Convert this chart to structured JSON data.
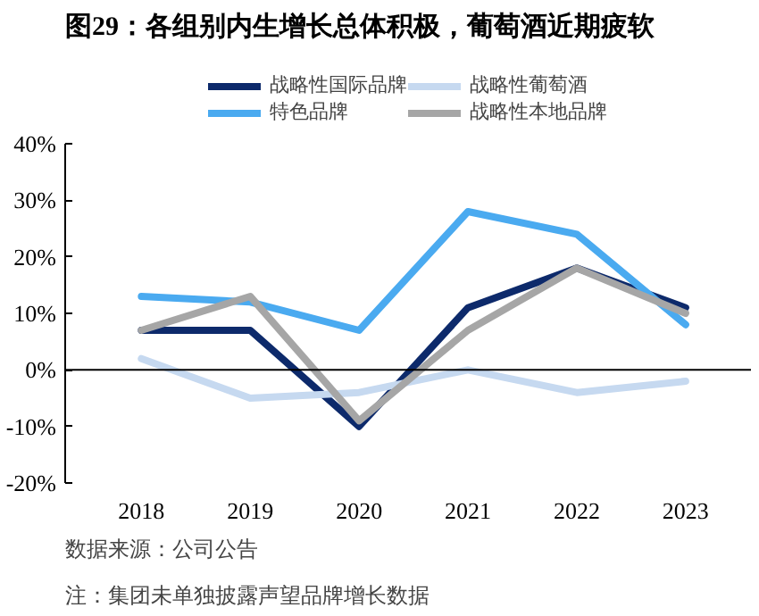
{
  "chart_data": {
    "type": "line",
    "title": "图29：各组别内生增长总体积极，葡萄酒近期疲软",
    "categories": [
      "2018",
      "2019",
      "2020",
      "2021",
      "2022",
      "2023"
    ],
    "series": [
      {
        "name": "战略性国际品牌",
        "color": "#0d2a6b",
        "values": [
          7,
          7,
          -10,
          11,
          18,
          11
        ]
      },
      {
        "name": "特色品牌",
        "color": "#4aaaf0",
        "values": [
          13,
          12,
          7,
          28,
          24,
          8
        ]
      },
      {
        "name": "战略性葡萄酒",
        "color": "#c6d9f0",
        "values": [
          2,
          -5,
          -4,
          0,
          -4,
          -2
        ]
      },
      {
        "name": "战略性本地品牌",
        "color": "#a6a6a6",
        "values": [
          7,
          13,
          -9,
          7,
          18,
          10
        ]
      }
    ],
    "ylim": [
      -20,
      40
    ],
    "yticks": [
      {
        "value": -20,
        "label": "-20%"
      },
      {
        "value": -10,
        "label": "-10%"
      },
      {
        "value": 0,
        "label": "0%"
      },
      {
        "value": 10,
        "label": "10%"
      },
      {
        "value": 20,
        "label": "20%"
      },
      {
        "value": 30,
        "label": "30%"
      },
      {
        "value": 40,
        "label": "40%"
      }
    ],
    "ref_lines": [
      {
        "axis": "y",
        "value": 0,
        "color": "#000000"
      }
    ],
    "grid": false,
    "legend": "top",
    "marker": "none",
    "line_style": "solid",
    "annotations": [
      "数据来源：公司公告",
      "注：集团未单独披露声望品牌增长数据"
    ]
  }
}
